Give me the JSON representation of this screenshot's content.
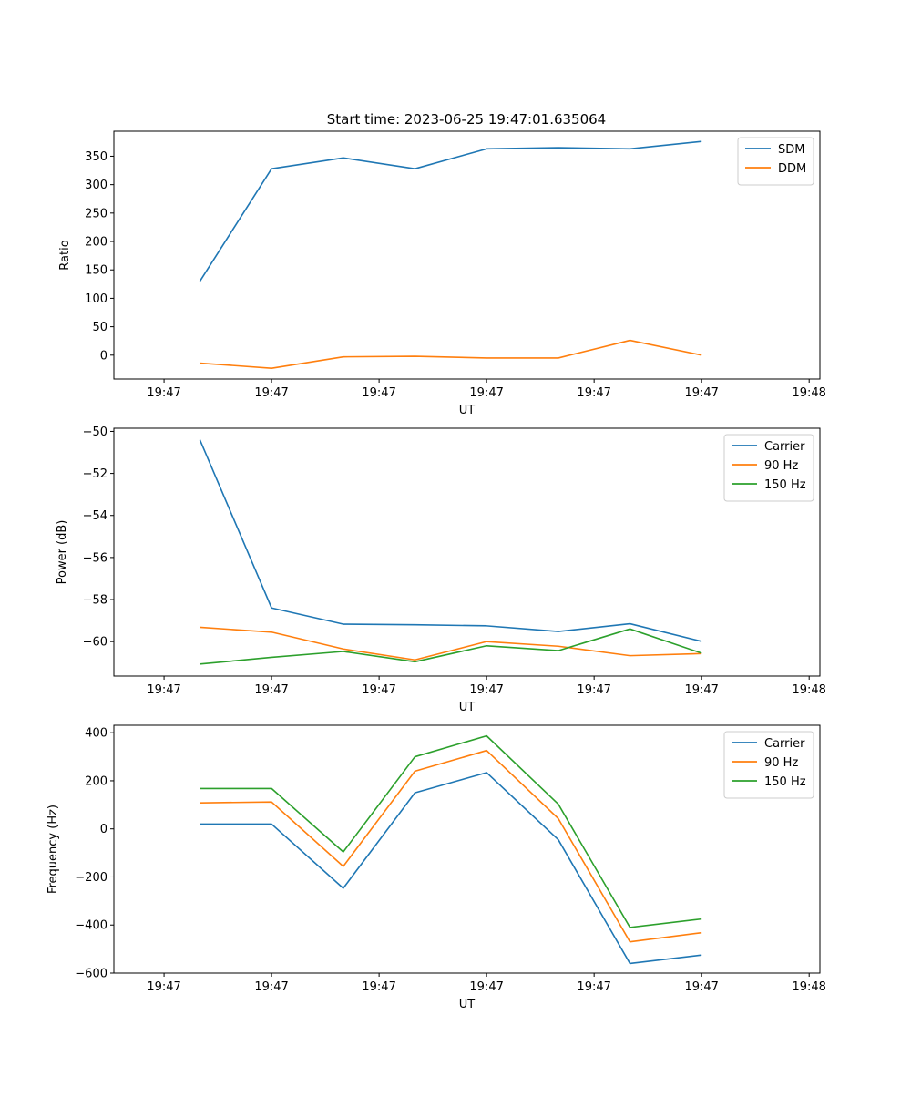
{
  "title": "Start time: 2023-06-25 19:47:01.635064",
  "colors": {
    "c0": "#1f77b4",
    "c1": "#ff7f0e",
    "c2": "#2ca02c"
  },
  "chart_data": [
    {
      "type": "line",
      "xlabel": "UT",
      "ylabel": "Ratio",
      "x": [
        1,
        2,
        3,
        4,
        5,
        6,
        7,
        8
      ],
      "xticks": [
        "19:47",
        "19:47",
        "19:47",
        "19:47",
        "19:47",
        "19:47",
        "19:48"
      ],
      "yticks": [
        "0",
        "50",
        "100",
        "150",
        "200",
        "250",
        "300",
        "350"
      ],
      "ylim": [
        -42,
        394
      ],
      "legend": "top-right",
      "series": [
        {
          "name": "SDM",
          "values": [
            130,
            328,
            347,
            328,
            363,
            365,
            363,
            376
          ]
        },
        {
          "name": "DDM",
          "values": [
            -14,
            -23,
            -3,
            -2,
            -5,
            -5,
            26,
            0
          ]
        }
      ]
    },
    {
      "type": "line",
      "xlabel": "UT",
      "ylabel": "Power (dB)",
      "x": [
        1,
        2,
        3,
        4,
        5,
        6,
        7,
        8
      ],
      "xticks": [
        "19:47",
        "19:47",
        "19:47",
        "19:47",
        "19:47",
        "19:47",
        "19:48"
      ],
      "yticks": [
        "−50",
        "−52",
        "−54",
        "−56",
        "−58",
        "−60"
      ],
      "ylim": [
        -61.64,
        -49.85
      ],
      "legend": "top-right",
      "series": [
        {
          "name": "Carrier",
          "values": [
            -50.4,
            -58.4,
            -59.17,
            -59.2,
            -59.25,
            -59.52,
            -59.15,
            -59.99
          ]
        },
        {
          "name": "90 Hz",
          "values": [
            -59.32,
            -59.55,
            -60.35,
            -60.87,
            -60.0,
            -60.22,
            -60.67,
            -60.57
          ]
        },
        {
          "name": "150 Hz",
          "values": [
            -61.07,
            -60.75,
            -60.47,
            -60.96,
            -60.2,
            -60.43,
            -59.4,
            -60.55
          ]
        }
      ]
    },
    {
      "type": "line",
      "xlabel": "UT",
      "ylabel": "Frequency (Hz)",
      "x": [
        1,
        2,
        3,
        4,
        5,
        6,
        7,
        8
      ],
      "xticks": [
        "19:47",
        "19:47",
        "19:47",
        "19:47",
        "19:47",
        "19:47",
        "19:48"
      ],
      "yticks": [
        "−600",
        "−400",
        "−200",
        "0",
        "200",
        "400"
      ],
      "ylim": [
        -600,
        431
      ],
      "legend": "top-right",
      "series": [
        {
          "name": "Carrier",
          "values": [
            20,
            20,
            -247,
            150,
            234,
            -45,
            -560,
            -525
          ]
        },
        {
          "name": "90 Hz",
          "values": [
            108,
            112,
            -156,
            240,
            326,
            43,
            -470,
            -432
          ]
        },
        {
          "name": "150 Hz",
          "values": [
            168,
            168,
            -96,
            300,
            387,
            103,
            -410,
            -375
          ]
        }
      ]
    }
  ]
}
